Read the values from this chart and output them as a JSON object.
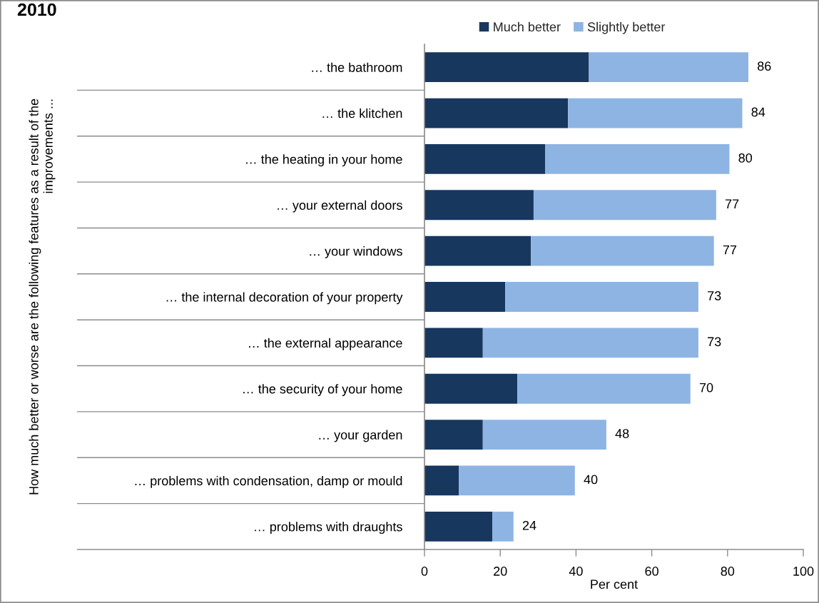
{
  "chart_data": {
    "type": "bar",
    "orientation": "horizontal",
    "stacked": true,
    "title": "2010",
    "xlabel": "Per cent",
    "annotations": [
      "How much better or worse are the following features as a result of the\nimprovements ..."
    ],
    "categories": [
      "… the bathroom",
      "… the klitchen",
      "… the heating in your home",
      "… your external doors",
      "… your windows",
      "… the internal decoration of your property",
      "… the external appearance",
      "… the security of your home",
      "… your garden",
      "… problems with condensation, damp or mould",
      "… problems with draughts"
    ],
    "series": [
      {
        "name": "Much better",
        "color": "#17375e",
        "values": [
          43.4,
          37.9,
          31.9,
          28.8,
          28.1,
          21.3,
          15.4,
          24.5,
          15.4,
          9.1,
          17.9
        ]
      },
      {
        "name": "Slightly better",
        "color": "#8eb4e3",
        "values": [
          42.1,
          46.0,
          48.6,
          48.2,
          48.3,
          51.0,
          56.9,
          45.7,
          32.6,
          30.6,
          5.6
        ]
      }
    ],
    "totals": [
      "86",
      "84",
      "80",
      "77",
      "77",
      "73",
      "73",
      "70",
      "48",
      "40",
      "24"
    ],
    "xlim": [
      0,
      100
    ],
    "xticks": [
      0,
      20,
      40,
      60,
      80,
      100
    ],
    "legend": "top"
  }
}
